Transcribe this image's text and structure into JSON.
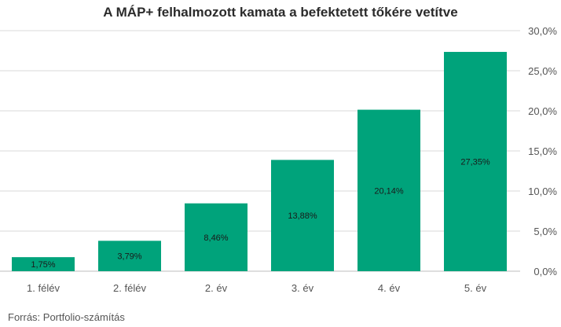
{
  "chart_data": {
    "type": "bar",
    "title": "A MÁP+ felhalmozott kamata a befektetett tőkére vetítve",
    "categories": [
      "1. félév",
      "2. félév",
      "2. év",
      "3. év",
      "4. év",
      "5. év"
    ],
    "values": [
      1.75,
      3.79,
      8.46,
      13.88,
      20.14,
      27.35
    ],
    "data_labels": [
      "1,75%",
      "3,79%",
      "8,46%",
      "13,88%",
      "20,14%",
      "27,35%"
    ],
    "ylim": [
      0,
      30
    ],
    "yticks": [
      0,
      5,
      10,
      15,
      20,
      25,
      30
    ],
    "ytick_labels": [
      "0,0%",
      "5,0%",
      "10,0%",
      "15,0%",
      "20,0%",
      "25,0%",
      "30,0%"
    ],
    "y_axis_position": "right",
    "grid": true,
    "bar_color": "#00a37b",
    "grid_color": "#d9d9d9",
    "xlabel": "",
    "ylabel": ""
  },
  "source": "Forrás: Portfolio-számítás"
}
